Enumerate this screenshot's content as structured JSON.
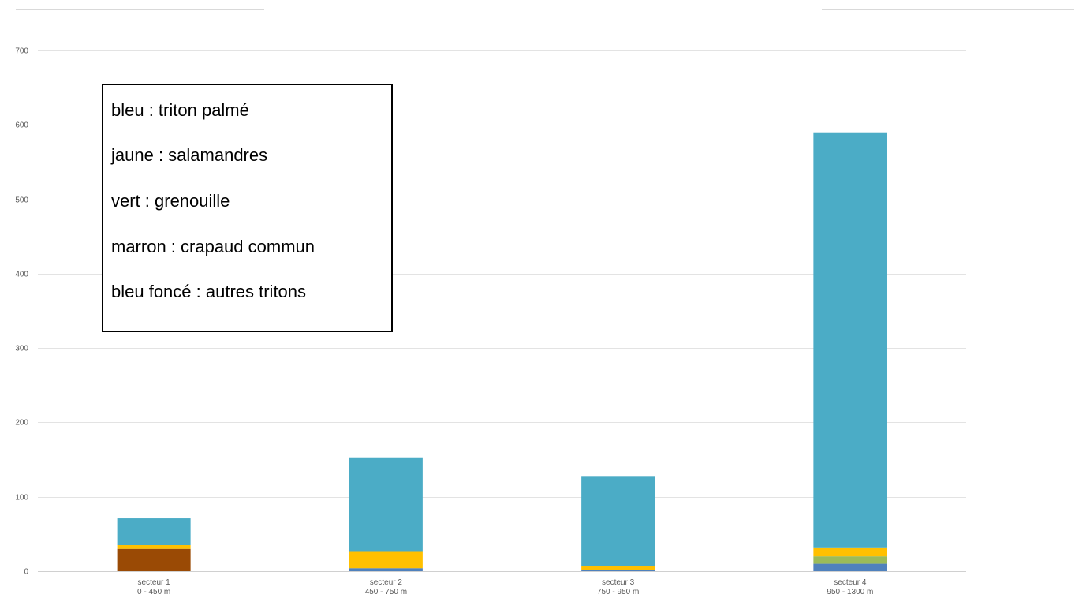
{
  "chart_data": {
    "type": "bar",
    "stacked": true,
    "categories": [
      [
        "secteur 1",
        "0 - 450 m"
      ],
      [
        "secteur 2",
        "450 - 750 m"
      ],
      [
        "secteur 3",
        "750 - 950 m"
      ],
      [
        "secteur 4",
        "950 - 1300 m"
      ]
    ],
    "series": [
      {
        "key": "autres_tritons",
        "color": "#4f81bd",
        "values": [
          0,
          4,
          2,
          10
        ]
      },
      {
        "key": "crapaud_commun",
        "color": "#9a4a05",
        "values": [
          30,
          0,
          0,
          0
        ]
      },
      {
        "key": "grenouille",
        "color": "#9bbb59",
        "values": [
          0,
          0,
          0,
          10
        ]
      },
      {
        "key": "salamandres",
        "color": "#ffc000",
        "values": [
          5,
          22,
          5,
          12
        ]
      },
      {
        "key": "triton_palme",
        "color": "#4bacc6",
        "values": [
          36,
          127,
          121,
          558
        ]
      }
    ],
    "ylim": [
      0,
      700
    ],
    "yticks": [
      0,
      100,
      200,
      300,
      400,
      500,
      600,
      700
    ],
    "grid": true,
    "title": "",
    "xlabel": "",
    "ylabel": ""
  },
  "legend_box": {
    "lines": [
      "bleu : triton palmé",
      "jaune : salamandres",
      "vert : grenouille",
      "marron : crapaud commun",
      "bleu foncé : autres tritons"
    ]
  }
}
